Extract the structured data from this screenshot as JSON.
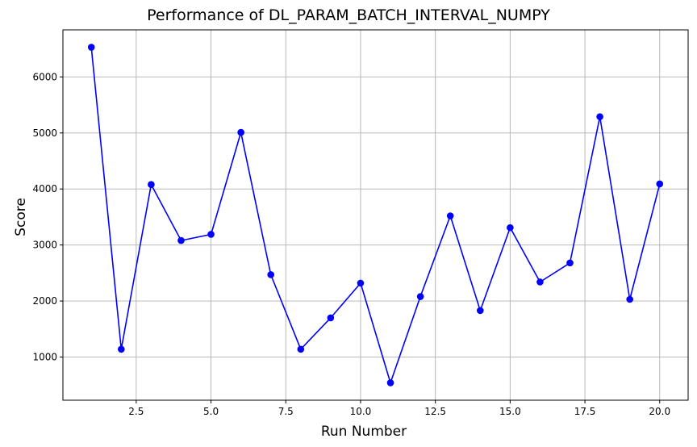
{
  "chart_data": {
    "type": "line",
    "title": "Performance of DL_PARAM_BATCH_INTERVAL_NUMPY",
    "xlabel": "Run Number",
    "ylabel": "Score",
    "xlim": [
      0.05,
      20.95
    ],
    "ylim": [
      230,
      6840
    ],
    "xticks": [
      2.5,
      5.0,
      7.5,
      10.0,
      12.5,
      15.0,
      17.5,
      20.0
    ],
    "xtick_labels": [
      "2.5",
      "5.0",
      "7.5",
      "10.0",
      "12.5",
      "15.0",
      "17.5",
      "20.0"
    ],
    "yticks": [
      1000,
      2000,
      3000,
      4000,
      5000,
      6000
    ],
    "ytick_labels": [
      "1000",
      "2000",
      "3000",
      "4000",
      "5000",
      "6000"
    ],
    "grid": true,
    "series": [
      {
        "color": "#0000ff",
        "marker": "circle",
        "x": [
          1,
          2,
          3,
          4,
          5,
          6,
          7,
          8,
          9,
          10,
          11,
          12,
          13,
          14,
          15,
          16,
          17,
          18,
          19,
          20
        ],
        "values": [
          6530,
          1140,
          4080,
          3080,
          3190,
          5010,
          2470,
          1140,
          1700,
          2320,
          540,
          2080,
          3520,
          1830,
          3310,
          2340,
          2680,
          5290,
          2030,
          4090
        ]
      }
    ]
  }
}
